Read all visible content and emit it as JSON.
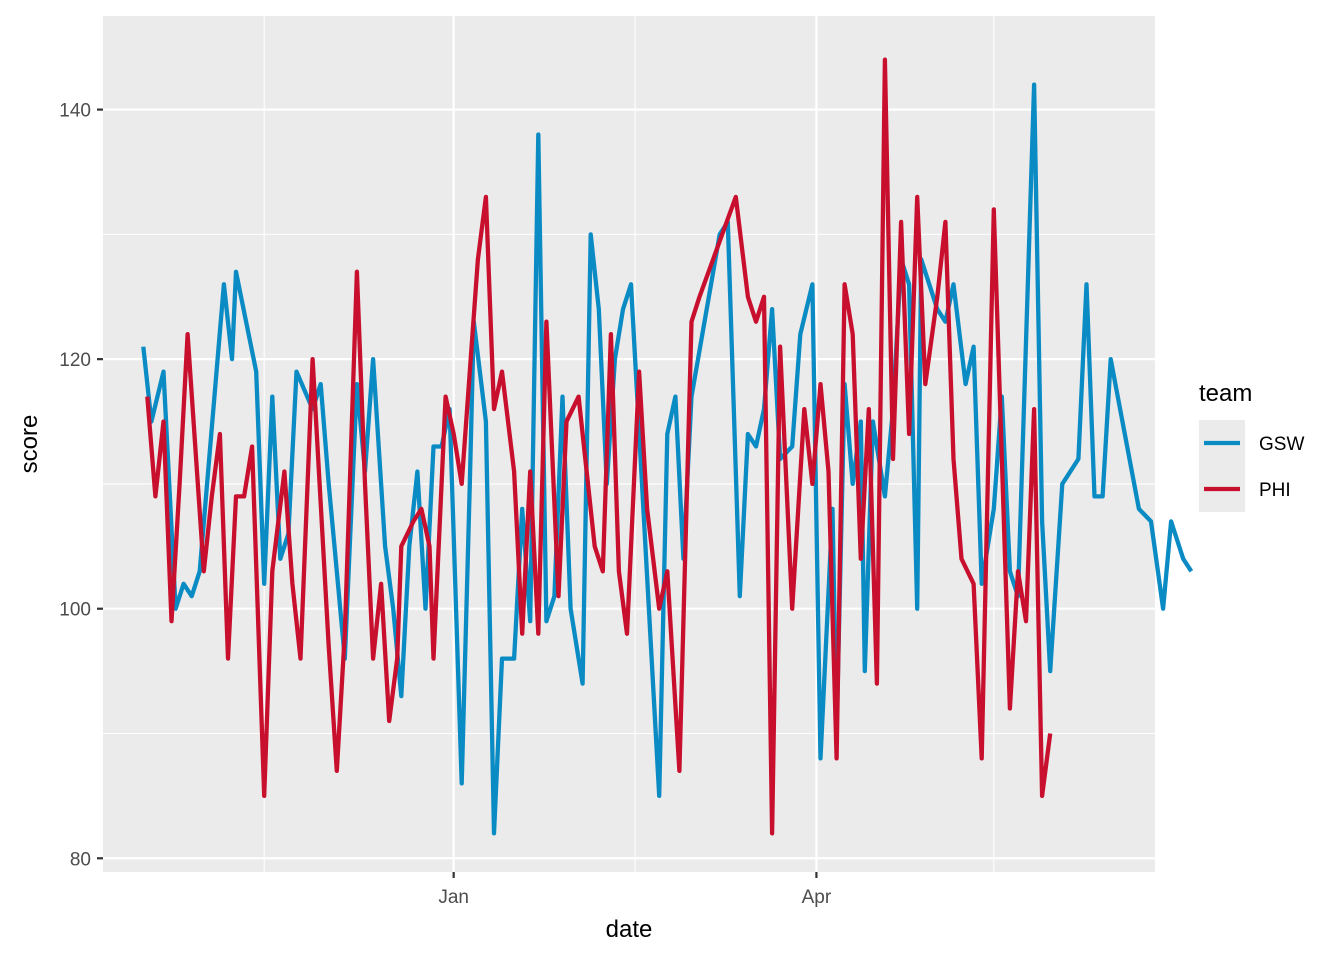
{
  "chart_data": {
    "type": "line",
    "xlabel": "date",
    "ylabel": "score",
    "x_tick_labels": [
      "Jan",
      "Apr"
    ],
    "y_tick_labels": [
      "80",
      "100",
      "120",
      "140"
    ],
    "y_ticks": [
      80,
      100,
      120,
      140
    ],
    "ylim": [
      78.9,
      147.5
    ],
    "xlim": [
      "2018-10-06",
      "2019-06-24"
    ],
    "x_major_dates": [
      "2019-01-01",
      "2019-04-01"
    ],
    "x_minor_dates": [
      "2018-11-15",
      "2019-02-15",
      "2019-05-15"
    ],
    "grid": true,
    "legend": {
      "title": "team",
      "position": "right"
    },
    "series": [
      {
        "name": "GSW",
        "color": "#0a8bc4",
        "points": [
          [
            "2018-10-16",
            121
          ],
          [
            "2018-10-18",
            115
          ],
          [
            "2018-10-21",
            119
          ],
          [
            "2018-10-24",
            100
          ],
          [
            "2018-10-26",
            102
          ],
          [
            "2018-10-28",
            101
          ],
          [
            "2018-10-30",
            103
          ],
          [
            "2018-11-05",
            126
          ],
          [
            "2018-11-07",
            120
          ],
          [
            "2018-11-08",
            127
          ],
          [
            "2018-11-13",
            119
          ],
          [
            "2018-11-15",
            102
          ],
          [
            "2018-11-17",
            117
          ],
          [
            "2018-11-19",
            104
          ],
          [
            "2018-11-21",
            106
          ],
          [
            "2018-11-23",
            119
          ],
          [
            "2018-11-27",
            116
          ],
          [
            "2018-11-29",
            118
          ],
          [
            "2018-12-01",
            110
          ],
          [
            "2018-12-03",
            103
          ],
          [
            "2018-12-05",
            96
          ],
          [
            "2018-12-08",
            118
          ],
          [
            "2018-12-10",
            111
          ],
          [
            "2018-12-12",
            120
          ],
          [
            "2018-12-15",
            105
          ],
          [
            "2018-12-17",
            100
          ],
          [
            "2018-12-19",
            93
          ],
          [
            "2018-12-21",
            105
          ],
          [
            "2018-12-23",
            111
          ],
          [
            "2018-12-25",
            100
          ],
          [
            "2018-12-27",
            113
          ],
          [
            "2018-12-29",
            113
          ],
          [
            "2018-12-31",
            116
          ],
          [
            "2019-01-03",
            86
          ],
          [
            "2019-01-05",
            110
          ],
          [
            "2019-01-06",
            123
          ],
          [
            "2019-01-09",
            115
          ],
          [
            "2019-01-11",
            82
          ],
          [
            "2019-01-13",
            96
          ],
          [
            "2019-01-16",
            96
          ],
          [
            "2019-01-18",
            108
          ],
          [
            "2019-01-20",
            99
          ],
          [
            "2019-01-22",
            138
          ],
          [
            "2019-01-24",
            99
          ],
          [
            "2019-01-26",
            101
          ],
          [
            "2019-01-28",
            117
          ],
          [
            "2019-01-30",
            100
          ],
          [
            "2019-02-02",
            94
          ],
          [
            "2019-02-04",
            130
          ],
          [
            "2019-02-06",
            124
          ],
          [
            "2019-02-08",
            110
          ],
          [
            "2019-02-10",
            120
          ],
          [
            "2019-02-12",
            124
          ],
          [
            "2019-02-14",
            126
          ],
          [
            "2019-02-21",
            85
          ],
          [
            "2019-02-23",
            114
          ],
          [
            "2019-02-25",
            117
          ],
          [
            "2019-02-27",
            104
          ],
          [
            "2019-03-01",
            117
          ],
          [
            "2019-03-08",
            130
          ],
          [
            "2019-03-10",
            131
          ],
          [
            "2019-03-13",
            101
          ],
          [
            "2019-03-15",
            114
          ],
          [
            "2019-03-17",
            113
          ],
          [
            "2019-03-19",
            116
          ],
          [
            "2019-03-21",
            124
          ],
          [
            "2019-03-23",
            112
          ],
          [
            "2019-03-26",
            113
          ],
          [
            "2019-03-28",
            122
          ],
          [
            "2019-03-31",
            126
          ],
          [
            "2019-04-02",
            88
          ],
          [
            "2019-04-05",
            108
          ],
          [
            "2019-04-06",
            90
          ],
          [
            "2019-04-08",
            118
          ],
          [
            "2019-04-10",
            110
          ],
          [
            "2019-04-12",
            115
          ],
          [
            "2019-04-13",
            95
          ],
          [
            "2019-04-15",
            115
          ],
          [
            "2019-04-17",
            111
          ],
          [
            "2019-04-18",
            109
          ],
          [
            "2019-04-20",
            116
          ],
          [
            "2019-04-22",
            128
          ],
          [
            "2019-04-24",
            126
          ],
          [
            "2019-04-26",
            100
          ],
          [
            "2019-04-27",
            128
          ],
          [
            "2019-05-01",
            124
          ],
          [
            "2019-05-03",
            123
          ],
          [
            "2019-05-05",
            126
          ],
          [
            "2019-05-08",
            118
          ],
          [
            "2019-05-10",
            121
          ],
          [
            "2019-05-12",
            102
          ],
          [
            "2019-05-15",
            108
          ],
          [
            "2019-05-17",
            117
          ],
          [
            "2019-05-19",
            103
          ],
          [
            "2019-05-21",
            101
          ],
          [
            "2019-05-25",
            142
          ],
          [
            "2019-05-27",
            107
          ],
          [
            "2019-05-29",
            95
          ],
          [
            "2019-06-01",
            110
          ],
          [
            "2019-06-05",
            112
          ],
          [
            "2019-06-07",
            126
          ],
          [
            "2019-06-09",
            109
          ],
          [
            "2019-06-11",
            109
          ],
          [
            "2019-06-13",
            120
          ],
          [
            "2019-06-20",
            108
          ],
          [
            "2019-06-23",
            107
          ],
          [
            "2019-06-26",
            100
          ],
          [
            "2019-06-28",
            107
          ],
          [
            "2019-07-01",
            104
          ],
          [
            "2019-07-03",
            103
          ]
        ]
      },
      {
        "name": "PHI",
        "color": "#c8102e",
        "points": [
          [
            "2018-10-17",
            117
          ],
          [
            "2018-10-19",
            109
          ],
          [
            "2018-10-21",
            115
          ],
          [
            "2018-10-23",
            99
          ],
          [
            "2018-10-25",
            110
          ],
          [
            "2018-10-27",
            122
          ],
          [
            "2018-10-31",
            103
          ],
          [
            "2018-11-02",
            109
          ],
          [
            "2018-11-04",
            114
          ],
          [
            "2018-11-06",
            96
          ],
          [
            "2018-11-08",
            109
          ],
          [
            "2018-11-10",
            109
          ],
          [
            "2018-11-12",
            113
          ],
          [
            "2018-11-15",
            85
          ],
          [
            "2018-11-17",
            103
          ],
          [
            "2018-11-20",
            111
          ],
          [
            "2018-11-22",
            102
          ],
          [
            "2018-11-24",
            96
          ],
          [
            "2018-11-27",
            120
          ],
          [
            "2018-12-01",
            97
          ],
          [
            "2018-12-03",
            87
          ],
          [
            "2018-12-05",
            98
          ],
          [
            "2018-12-08",
            127
          ],
          [
            "2018-12-10",
            110
          ],
          [
            "2018-12-12",
            96
          ],
          [
            "2018-12-14",
            102
          ],
          [
            "2018-12-16",
            91
          ],
          [
            "2018-12-18",
            96
          ],
          [
            "2018-12-19",
            105
          ],
          [
            "2018-12-22",
            107
          ],
          [
            "2018-12-24",
            108
          ],
          [
            "2018-12-26",
            105
          ],
          [
            "2018-12-27",
            96
          ],
          [
            "2018-12-30",
            117
          ],
          [
            "2019-01-01",
            114
          ],
          [
            "2019-01-03",
            110
          ],
          [
            "2019-01-07",
            128
          ],
          [
            "2019-01-09",
            133
          ],
          [
            "2019-01-11",
            116
          ],
          [
            "2019-01-13",
            119
          ],
          [
            "2019-01-16",
            111
          ],
          [
            "2019-01-18",
            98
          ],
          [
            "2019-01-20",
            111
          ],
          [
            "2019-01-22",
            98
          ],
          [
            "2019-01-24",
            123
          ],
          [
            "2019-01-27",
            101
          ],
          [
            "2019-01-29",
            115
          ],
          [
            "2019-02-01",
            117
          ],
          [
            "2019-02-05",
            105
          ],
          [
            "2019-02-07",
            103
          ],
          [
            "2019-02-09",
            122
          ],
          [
            "2019-02-11",
            103
          ],
          [
            "2019-02-13",
            98
          ],
          [
            "2019-02-16",
            119
          ],
          [
            "2019-02-18",
            108
          ],
          [
            "2019-02-21",
            100
          ],
          [
            "2019-02-23",
            103
          ],
          [
            "2019-02-26",
            87
          ],
          [
            "2019-03-01",
            123
          ],
          [
            "2019-03-03",
            125
          ],
          [
            "2019-03-12",
            133
          ],
          [
            "2019-03-15",
            125
          ],
          [
            "2019-03-17",
            123
          ],
          [
            "2019-03-19",
            125
          ],
          [
            "2019-03-21",
            82
          ],
          [
            "2019-03-23",
            121
          ],
          [
            "2019-03-26",
            100
          ],
          [
            "2019-03-29",
            116
          ],
          [
            "2019-03-31",
            110
          ],
          [
            "2019-04-02",
            118
          ],
          [
            "2019-04-04",
            111
          ],
          [
            "2019-04-06",
            88
          ],
          [
            "2019-04-08",
            126
          ],
          [
            "2019-04-10",
            122
          ],
          [
            "2019-04-12",
            104
          ],
          [
            "2019-04-14",
            116
          ],
          [
            "2019-04-16",
            94
          ],
          [
            "2019-04-18",
            144
          ],
          [
            "2019-04-20",
            112
          ],
          [
            "2019-04-22",
            131
          ],
          [
            "2019-04-24",
            114
          ],
          [
            "2019-04-26",
            133
          ],
          [
            "2019-04-28",
            118
          ],
          [
            "2019-05-01",
            125
          ],
          [
            "2019-05-03",
            131
          ],
          [
            "2019-05-05",
            112
          ],
          [
            "2019-05-07",
            104
          ],
          [
            "2019-05-10",
            102
          ],
          [
            "2019-05-12",
            88
          ],
          [
            "2019-05-15",
            132
          ],
          [
            "2019-05-19",
            92
          ],
          [
            "2019-05-21",
            103
          ],
          [
            "2019-05-23",
            99
          ],
          [
            "2019-05-25",
            116
          ],
          [
            "2019-05-27",
            85
          ],
          [
            "2019-05-29",
            90
          ]
        ]
      }
    ]
  }
}
